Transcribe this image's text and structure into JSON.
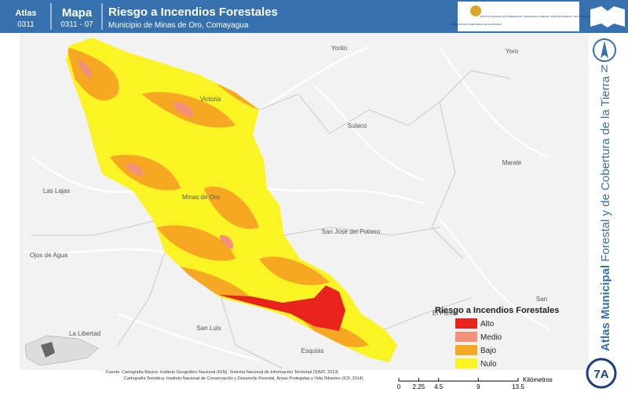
{
  "header": {
    "atlas_label": "Atlas",
    "atlas_code": "0311",
    "map_label": "Mapa",
    "map_code": "0311 - 07",
    "title": "Riesgo a Incendios Forestales",
    "subtitle": "Municipio de Minas de Oro, Comayagua",
    "logo_left": "GOBIERNO DE LA REPÚBLICA DE HONDURAS",
    "logo_right": "INSTITUTO NACIONAL DE CONSERVACIÓN Y DESARROLLO FORESTAL, ÁREAS PROTEGIDAS Y VIDA SILVESTRE ICF"
  },
  "places": [
    "Yorito",
    "Yoro",
    "Victoria",
    "Sulaco",
    "Marale",
    "Las Lajas",
    "Minas de Oro",
    "San José del Potrero",
    "Ojos de Agua",
    "La Libertad",
    "San Luis",
    "Esquías",
    "El Porve",
    "San"
  ],
  "legend": {
    "title": "Riesgo a Incendios Forestales",
    "items": [
      {
        "label": "Alto",
        "color": "#e8231e"
      },
      {
        "label": "Medio",
        "color": "#f4907a"
      },
      {
        "label": "Bajo",
        "color": "#f7a823"
      },
      {
        "label": "Nulo",
        "color": "#fbf424"
      }
    ]
  },
  "scale_bar": {
    "ticks": [
      0,
      2.25,
      4.5,
      9,
      13.5
    ],
    "unit": "Kilómetros"
  },
  "source": {
    "line1": "Fuente: Cartografía Básica: Instituto Geográfico Nacional (IGN), Sistema Nacional de Información Territorial (SINIT, 2013)",
    "line2": "Cartografía Temática: Instituto Nacional de Conservación y Desarrollo Forestal, Áreas Protegidas y Vida Silvestre (ICF, 2014)"
  },
  "sidebar": {
    "north": "N",
    "series_bold": "Atlas Municipal",
    "series_rest": "Forestal y de Cobertura de la Tierra",
    "badge": "7A"
  }
}
